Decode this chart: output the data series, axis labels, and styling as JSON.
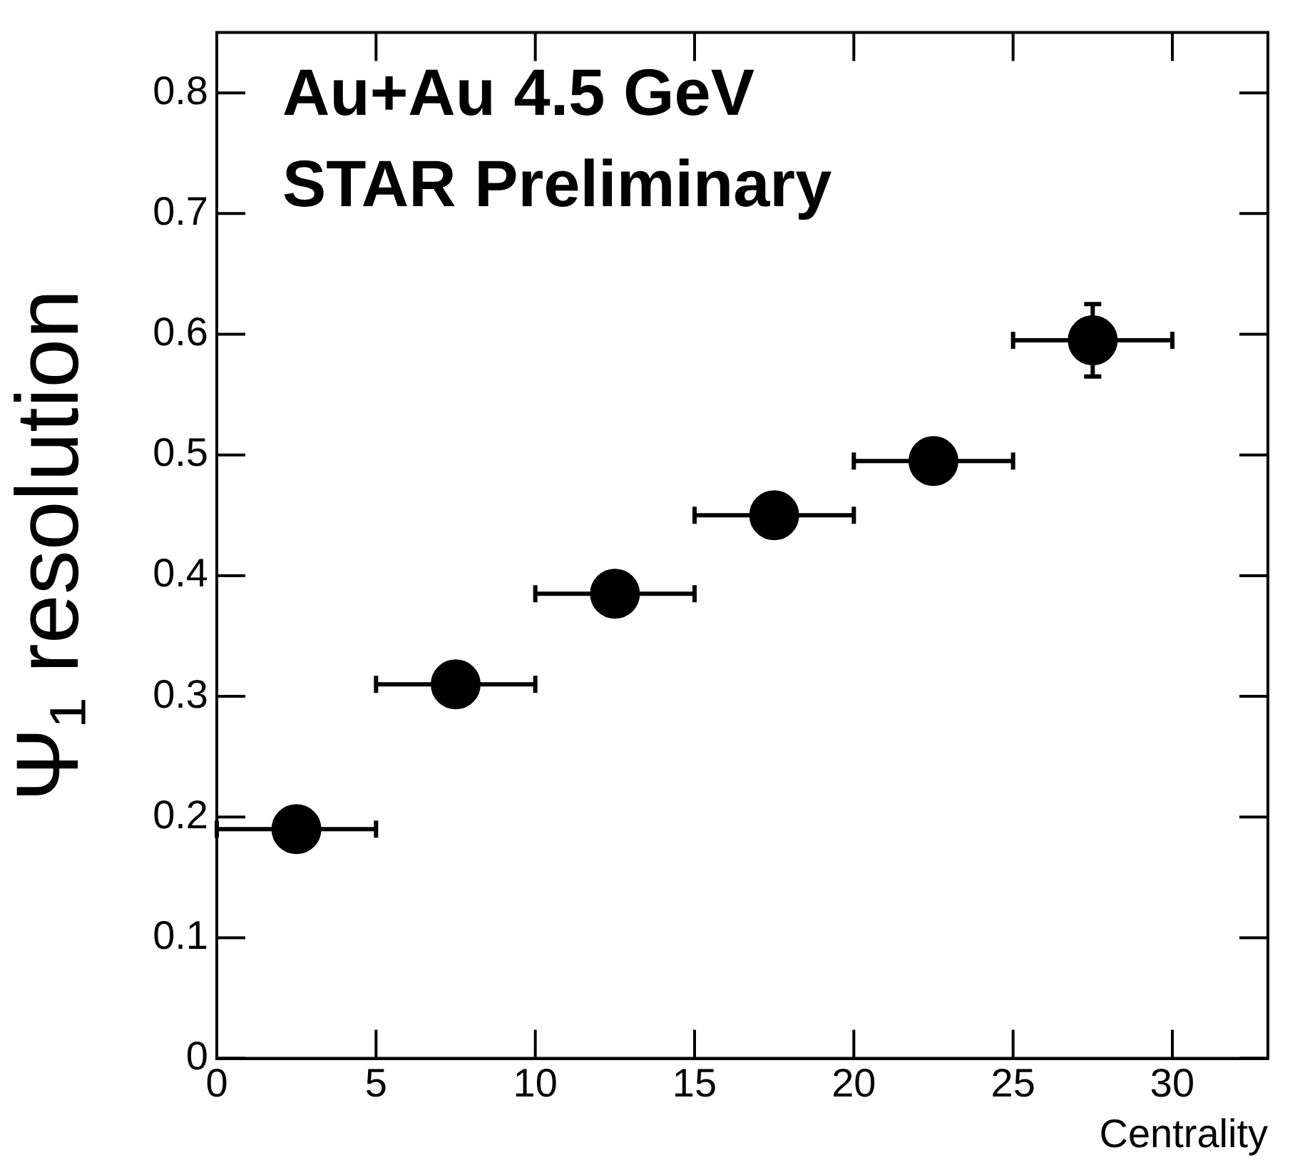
{
  "chart_data": {
    "type": "scatter",
    "xlabel": "Centrality",
    "ylabel": "Ψ₁ resolution",
    "annotations": [
      "Au+Au 4.5 GeV",
      "STAR Preliminary"
    ],
    "x": [
      2.5,
      7.5,
      12.5,
      17.5,
      22.5,
      27.5
    ],
    "series": [
      {
        "color": "#000000",
        "values": [
          0.19,
          0.31,
          0.385,
          0.45,
          0.495,
          0.595
        ],
        "xerrors": [
          2.5,
          2.5,
          2.5,
          2.5,
          2.5,
          2.5
        ],
        "errors": [
          null,
          null,
          null,
          null,
          null,
          0.03
        ]
      }
    ],
    "xlim": [
      0,
      33
    ],
    "ylim": [
      0,
      0.85
    ],
    "xticks": [
      0,
      5,
      10,
      15,
      20,
      25,
      30
    ],
    "yticks": [
      0,
      0.1,
      0.2,
      0.3,
      0.4,
      0.5,
      0.6,
      0.7,
      0.8
    ],
    "grid": false,
    "legend": false,
    "marker": "circle"
  }
}
